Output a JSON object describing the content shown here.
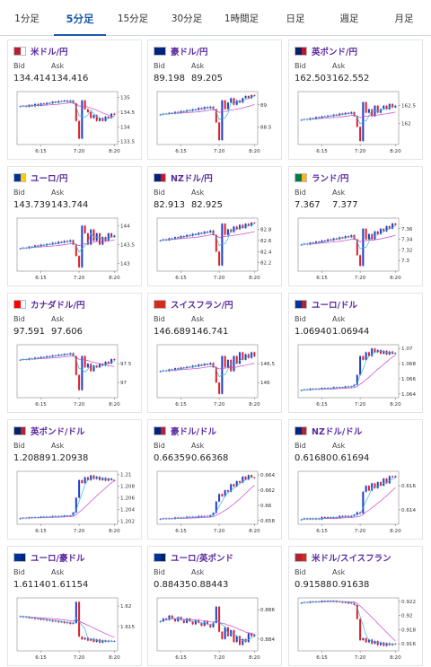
{
  "tabs": [
    {
      "label": "1分足",
      "active": false
    },
    {
      "label": "5分足",
      "active": true
    },
    {
      "label": "15分足",
      "active": false
    },
    {
      "label": "30分足",
      "active": false
    },
    {
      "label": "1時間足",
      "active": false
    },
    {
      "label": "日足",
      "active": false
    },
    {
      "label": "週足",
      "active": false
    },
    {
      "label": "月足",
      "active": false
    }
  ],
  "bid_label": "Bid",
  "ask_label": "Ask",
  "colors": {
    "up": "#1f3fc9",
    "down": "#e0202a",
    "ma_short": "#36b4e0",
    "ma_long": "#cc44cc",
    "pair_text": "#5a2ba0",
    "tab_active": "#1a5aa8"
  },
  "cards": [
    {
      "pair": "米ドル/円",
      "flag": [
        "#b22234",
        "#ffffff"
      ],
      "bid": "134.414",
      "ask": "134.416",
      "chart_data": {
        "type": "candlestick",
        "x_ticks": [
          "6:15",
          "7:20",
          "8:20"
        ],
        "y_ticks": [
          "135",
          "134.5",
          "134",
          "133.5"
        ],
        "ylim": [
          133.4,
          135.2
        ],
        "closes": [
          134.7,
          134.72,
          134.68,
          134.75,
          134.7,
          134.78,
          134.72,
          134.8,
          134.76,
          134.82,
          134.8,
          134.86,
          134.82,
          134.88,
          134.86,
          134.9,
          134.85,
          134.9,
          134.8,
          134.2,
          133.6,
          134.9,
          134.6,
          134.5,
          134.3,
          134.4,
          134.2,
          134.3,
          134.2,
          134.35,
          134.3,
          134.45,
          134.41
        ]
      }
    },
    {
      "pair": "豪ドル/円",
      "flag": [
        "#00247d",
        "#00247d"
      ],
      "bid": "89.198",
      "ask": "89.205",
      "chart_data": {
        "type": "candlestick",
        "x_ticks": [
          "6:15",
          "7:20",
          "8:20"
        ],
        "y_ticks": [
          "89",
          "88.5"
        ],
        "ylim": [
          88.1,
          89.3
        ],
        "closes": [
          88.78,
          88.8,
          88.79,
          88.82,
          88.8,
          88.84,
          88.82,
          88.86,
          88.84,
          88.88,
          88.86,
          88.9,
          88.88,
          88.93,
          88.9,
          88.95,
          88.92,
          88.96,
          88.9,
          88.6,
          88.2,
          89.1,
          88.9,
          89.05,
          89.15,
          89.0,
          89.1,
          89.05,
          89.15,
          89.2,
          89.15,
          89.22,
          89.2
        ]
      }
    },
    {
      "pair": "英ポンド/円",
      "flag": [
        "#012169",
        "#c8102e"
      ],
      "bid": "162.503",
      "ask": "162.552",
      "chart_data": {
        "type": "candlestick",
        "x_ticks": [
          "6:15",
          "7:20",
          "8:20"
        ],
        "y_ticks": [
          "162.5",
          "162"
        ],
        "ylim": [
          161.4,
          162.9
        ],
        "closes": [
          162.1,
          162.12,
          162.1,
          162.15,
          162.12,
          162.18,
          162.15,
          162.2,
          162.18,
          162.22,
          162.2,
          162.25,
          162.22,
          162.28,
          162.25,
          162.3,
          162.27,
          162.32,
          162.2,
          161.9,
          161.5,
          162.6,
          162.3,
          162.4,
          162.2,
          162.5,
          162.3,
          162.4,
          162.5,
          162.4,
          162.55,
          162.45,
          162.5
        ]
      }
    },
    {
      "pair": "ユーロ/円",
      "flag": [
        "#003399",
        "#ffcc00"
      ],
      "bid": "143.739",
      "ask": "143.744",
      "chart_data": {
        "type": "candlestick",
        "x_ticks": [
          "6:15",
          "7:20",
          "8:20"
        ],
        "y_ticks": [
          "144",
          "143.5",
          "143"
        ],
        "ylim": [
          142.8,
          144.2
        ],
        "closes": [
          143.4,
          143.42,
          143.4,
          143.45,
          143.43,
          143.48,
          143.45,
          143.5,
          143.48,
          143.52,
          143.5,
          143.55,
          143.52,
          143.58,
          143.55,
          143.6,
          143.57,
          143.62,
          143.5,
          143.2,
          142.9,
          144.0,
          143.8,
          143.5,
          143.9,
          143.6,
          143.8,
          143.5,
          143.7,
          143.6,
          143.8,
          143.7,
          143.74
        ]
      }
    },
    {
      "pair": "NZドル/円",
      "flag": [
        "#00247d",
        "#cc142b"
      ],
      "bid": "82.913",
      "ask": "82.925",
      "chart_data": {
        "type": "candlestick",
        "x_ticks": [
          "6:15",
          "7:20",
          "8:20"
        ],
        "y_ticks": [
          "82.8",
          "82.6",
          "82.4",
          "82.2"
        ],
        "ylim": [
          82.05,
          83.0
        ],
        "closes": [
          82.6,
          82.62,
          82.6,
          82.64,
          82.62,
          82.66,
          82.64,
          82.68,
          82.66,
          82.7,
          82.68,
          82.72,
          82.7,
          82.74,
          82.72,
          82.76,
          82.74,
          82.78,
          82.7,
          82.4,
          82.15,
          82.9,
          82.7,
          82.8,
          82.75,
          82.85,
          82.8,
          82.88,
          82.82,
          82.9,
          82.86,
          82.92,
          82.91
        ]
      }
    },
    {
      "pair": "ランド/円",
      "flag": [
        "#007a4d",
        "#ffb612"
      ],
      "bid": "7.367",
      "ask": "7.377",
      "chart_data": {
        "type": "candlestick",
        "x_ticks": [
          "6:15",
          "7:20",
          "8:20"
        ],
        "y_ticks": [
          "7.36",
          "7.34",
          "7.32",
          "7.3"
        ],
        "ylim": [
          7.28,
          7.38
        ],
        "closes": [
          7.33,
          7.332,
          7.33,
          7.334,
          7.332,
          7.336,
          7.334,
          7.338,
          7.336,
          7.34,
          7.338,
          7.342,
          7.34,
          7.344,
          7.342,
          7.346,
          7.344,
          7.348,
          7.34,
          7.31,
          7.29,
          7.36,
          7.34,
          7.35,
          7.34,
          7.355,
          7.35,
          7.36,
          7.355,
          7.365,
          7.36,
          7.37,
          7.367
        ]
      }
    },
    {
      "pair": "カナダドル/円",
      "flag": [
        "#ff0000",
        "#ffffff"
      ],
      "bid": "97.591",
      "ask": "97.606",
      "chart_data": {
        "type": "candlestick",
        "x_ticks": [
          "6:15",
          "7:20",
          "8:20"
        ],
        "y_ticks": [
          "97.5",
          "97"
        ],
        "ylim": [
          96.6,
          98.0
        ],
        "closes": [
          97.6,
          97.62,
          97.6,
          97.64,
          97.62,
          97.66,
          97.64,
          97.68,
          97.66,
          97.7,
          97.68,
          97.72,
          97.7,
          97.74,
          97.72,
          97.76,
          97.74,
          97.78,
          97.7,
          97.2,
          96.8,
          97.7,
          97.4,
          97.5,
          97.3,
          97.45,
          97.4,
          97.5,
          97.45,
          97.55,
          97.5,
          97.62,
          97.59
        ]
      }
    },
    {
      "pair": "スイスフラン/円",
      "flag": [
        "#d52b1e",
        "#d52b1e"
      ],
      "bid": "146.689",
      "ask": "146.741",
      "chart_data": {
        "type": "candlestick",
        "x_ticks": [
          "6:15",
          "7:20",
          "8:20"
        ],
        "y_ticks": [
          "146.5",
          "146"
        ],
        "ylim": [
          145.6,
          147.0
        ],
        "closes": [
          146.3,
          146.32,
          146.3,
          146.35,
          146.32,
          146.38,
          146.35,
          146.4,
          146.38,
          146.42,
          146.4,
          146.45,
          146.42,
          146.48,
          146.45,
          146.5,
          146.47,
          146.52,
          146.4,
          146.0,
          145.7,
          146.7,
          146.4,
          146.6,
          146.3,
          146.7,
          146.5,
          146.8,
          146.6,
          146.75,
          146.65,
          146.8,
          146.69
        ]
      }
    },
    {
      "pair": "ユーロ/ドル",
      "flag": [
        "#003399",
        "#b22234"
      ],
      "bid": "1.06940",
      "ask": "1.06944",
      "chart_data": {
        "type": "candlestick",
        "x_ticks": [
          "6:15",
          "7:20",
          "8:20"
        ],
        "y_ticks": [
          "1.07",
          "1.068",
          "1.066",
          "1.064"
        ],
        "ylim": [
          1.0635,
          1.0705
        ],
        "closes": [
          1.0645,
          1.0646,
          1.0645,
          1.0647,
          1.0646,
          1.0647,
          1.0646,
          1.0648,
          1.0647,
          1.0648,
          1.0647,
          1.0649,
          1.0648,
          1.0649,
          1.0648,
          1.065,
          1.0649,
          1.065,
          1.0652,
          1.0665,
          1.069,
          1.0685,
          1.0695,
          1.069,
          1.07,
          1.0695,
          1.0698,
          1.0693,
          1.0697,
          1.0692,
          1.0696,
          1.0693,
          1.0694
        ]
      }
    },
    {
      "pair": "英ポンド/ドル",
      "flag": [
        "#012169",
        "#b22234"
      ],
      "bid": "1.20889",
      "ask": "1.20938",
      "chart_data": {
        "type": "candlestick",
        "x_ticks": [
          "6:15",
          "7:20",
          "8:20"
        ],
        "y_ticks": [
          "1.21",
          "1.208",
          "1.206",
          "1.204",
          "1.202"
        ],
        "ylim": [
          1.2015,
          1.2105
        ],
        "closes": [
          1.2025,
          1.2026,
          1.2025,
          1.2027,
          1.2026,
          1.2027,
          1.2026,
          1.2028,
          1.2027,
          1.2028,
          1.2027,
          1.2029,
          1.2028,
          1.2029,
          1.2028,
          1.203,
          1.2029,
          1.203,
          1.2035,
          1.206,
          1.209,
          1.2085,
          1.2095,
          1.209,
          1.2098,
          1.2092,
          1.2096,
          1.209,
          1.2094,
          1.2089,
          1.2093,
          1.209,
          1.2089
        ]
      }
    },
    {
      "pair": "豪ドル/ドル",
      "flag": [
        "#00247d",
        "#b22234"
      ],
      "bid": "0.66359",
      "ask": "0.66368",
      "chart_data": {
        "type": "candlestick",
        "x_ticks": [
          "6:15",
          "7:20",
          "8:20"
        ],
        "y_ticks": [
          "0.664",
          "0.662",
          "0.66",
          "0.658"
        ],
        "ylim": [
          0.6575,
          0.6645
        ],
        "closes": [
          0.6582,
          0.6583,
          0.6582,
          0.6583,
          0.6582,
          0.6584,
          0.6583,
          0.6584,
          0.6583,
          0.6585,
          0.6584,
          0.6585,
          0.6584,
          0.6586,
          0.6585,
          0.6586,
          0.6585,
          0.6587,
          0.659,
          0.6605,
          0.6615,
          0.6612,
          0.662,
          0.6618,
          0.6628,
          0.6625,
          0.6632,
          0.663,
          0.6638,
          0.6634,
          0.664,
          0.6637,
          0.6636
        ]
      }
    },
    {
      "pair": "NZドル/ドル",
      "flag": [
        "#00247d",
        "#b22234"
      ],
      "bid": "0.61680",
      "ask": "0.61694",
      "chart_data": {
        "type": "candlestick",
        "x_ticks": [
          "6:15",
          "7:20",
          "8:20"
        ],
        "y_ticks": [
          "0.616",
          "0.614"
        ],
        "ylim": [
          0.6128,
          0.6172
        ],
        "closes": [
          0.6132,
          0.6133,
          0.6132,
          0.6133,
          0.6132,
          0.6133,
          0.6132,
          0.6134,
          0.6133,
          0.6134,
          0.6133,
          0.6134,
          0.6133,
          0.6135,
          0.6134,
          0.6135,
          0.6134,
          0.6135,
          0.6136,
          0.6138,
          0.6137,
          0.6155,
          0.616,
          0.6156,
          0.6162,
          0.6158,
          0.6163,
          0.616,
          0.6166,
          0.6162,
          0.6168,
          0.6167,
          0.6168
        ]
      }
    },
    {
      "pair": "ユーロ/豪ドル",
      "flag": [
        "#003399",
        "#00247d"
      ],
      "bid": "1.61140",
      "ask": "1.61154",
      "chart_data": {
        "type": "candlestick",
        "x_ticks": [
          "6:15",
          "7:20",
          "8:20"
        ],
        "y_ticks": [
          "1.62",
          "1.615"
        ],
        "ylim": [
          1.609,
          1.622
        ],
        "closes": [
          1.6175,
          1.6172,
          1.6174,
          1.617,
          1.6172,
          1.6168,
          1.617,
          1.6166,
          1.6168,
          1.6164,
          1.6166,
          1.6162,
          1.6164,
          1.616,
          1.6162,
          1.6158,
          1.616,
          1.6156,
          1.6158,
          1.621,
          1.6125,
          1.6118,
          1.6122,
          1.6115,
          1.612,
          1.6112,
          1.6118,
          1.611,
          1.6116,
          1.6112,
          1.6115,
          1.6113,
          1.6114
        ]
      }
    },
    {
      "pair": "ユーロ/英ポンド",
      "flag": [
        "#003399",
        "#012169"
      ],
      "bid": "0.88435",
      "ask": "0.88443",
      "chart_data": {
        "type": "candlestick",
        "x_ticks": [
          "6:15",
          "7:20",
          "8:20"
        ],
        "y_ticks": [
          "0.886",
          "0.884"
        ],
        "ylim": [
          0.8832,
          0.8868
        ],
        "closes": [
          0.8852,
          0.8854,
          0.8853,
          0.8856,
          0.8854,
          0.8852,
          0.8855,
          0.8853,
          0.8851,
          0.8854,
          0.8852,
          0.885,
          0.8853,
          0.8851,
          0.8849,
          0.8852,
          0.885,
          0.8848,
          0.8851,
          0.8862,
          0.8845,
          0.884,
          0.8848,
          0.8842,
          0.8846,
          0.8838,
          0.8842,
          0.8836,
          0.884,
          0.8838,
          0.8844,
          0.8842,
          0.8843
        ]
      }
    },
    {
      "pair": "米ドル/スイスフラン",
      "flag": [
        "#b22234",
        "#d52b1e"
      ],
      "bid": "0.91588",
      "ask": "0.91638",
      "chart_data": {
        "type": "candlestick",
        "x_ticks": [
          "6:15",
          "7:20",
          "8:20"
        ],
        "y_ticks": [
          "0.922",
          "0.92",
          "0.918",
          "0.916"
        ],
        "ylim": [
          0.915,
          0.9225
        ],
        "closes": [
          0.9218,
          0.9219,
          0.9218,
          0.922,
          0.9219,
          0.922,
          0.9219,
          0.9221,
          0.922,
          0.9221,
          0.922,
          0.9221,
          0.9219,
          0.922,
          0.9218,
          0.9219,
          0.9217,
          0.9218,
          0.9215,
          0.9195,
          0.9165,
          0.9168,
          0.9162,
          0.9166,
          0.916,
          0.9164,
          0.9158,
          0.9162,
          0.9157,
          0.9161,
          0.9158,
          0.916,
          0.9159
        ]
      }
    }
  ]
}
